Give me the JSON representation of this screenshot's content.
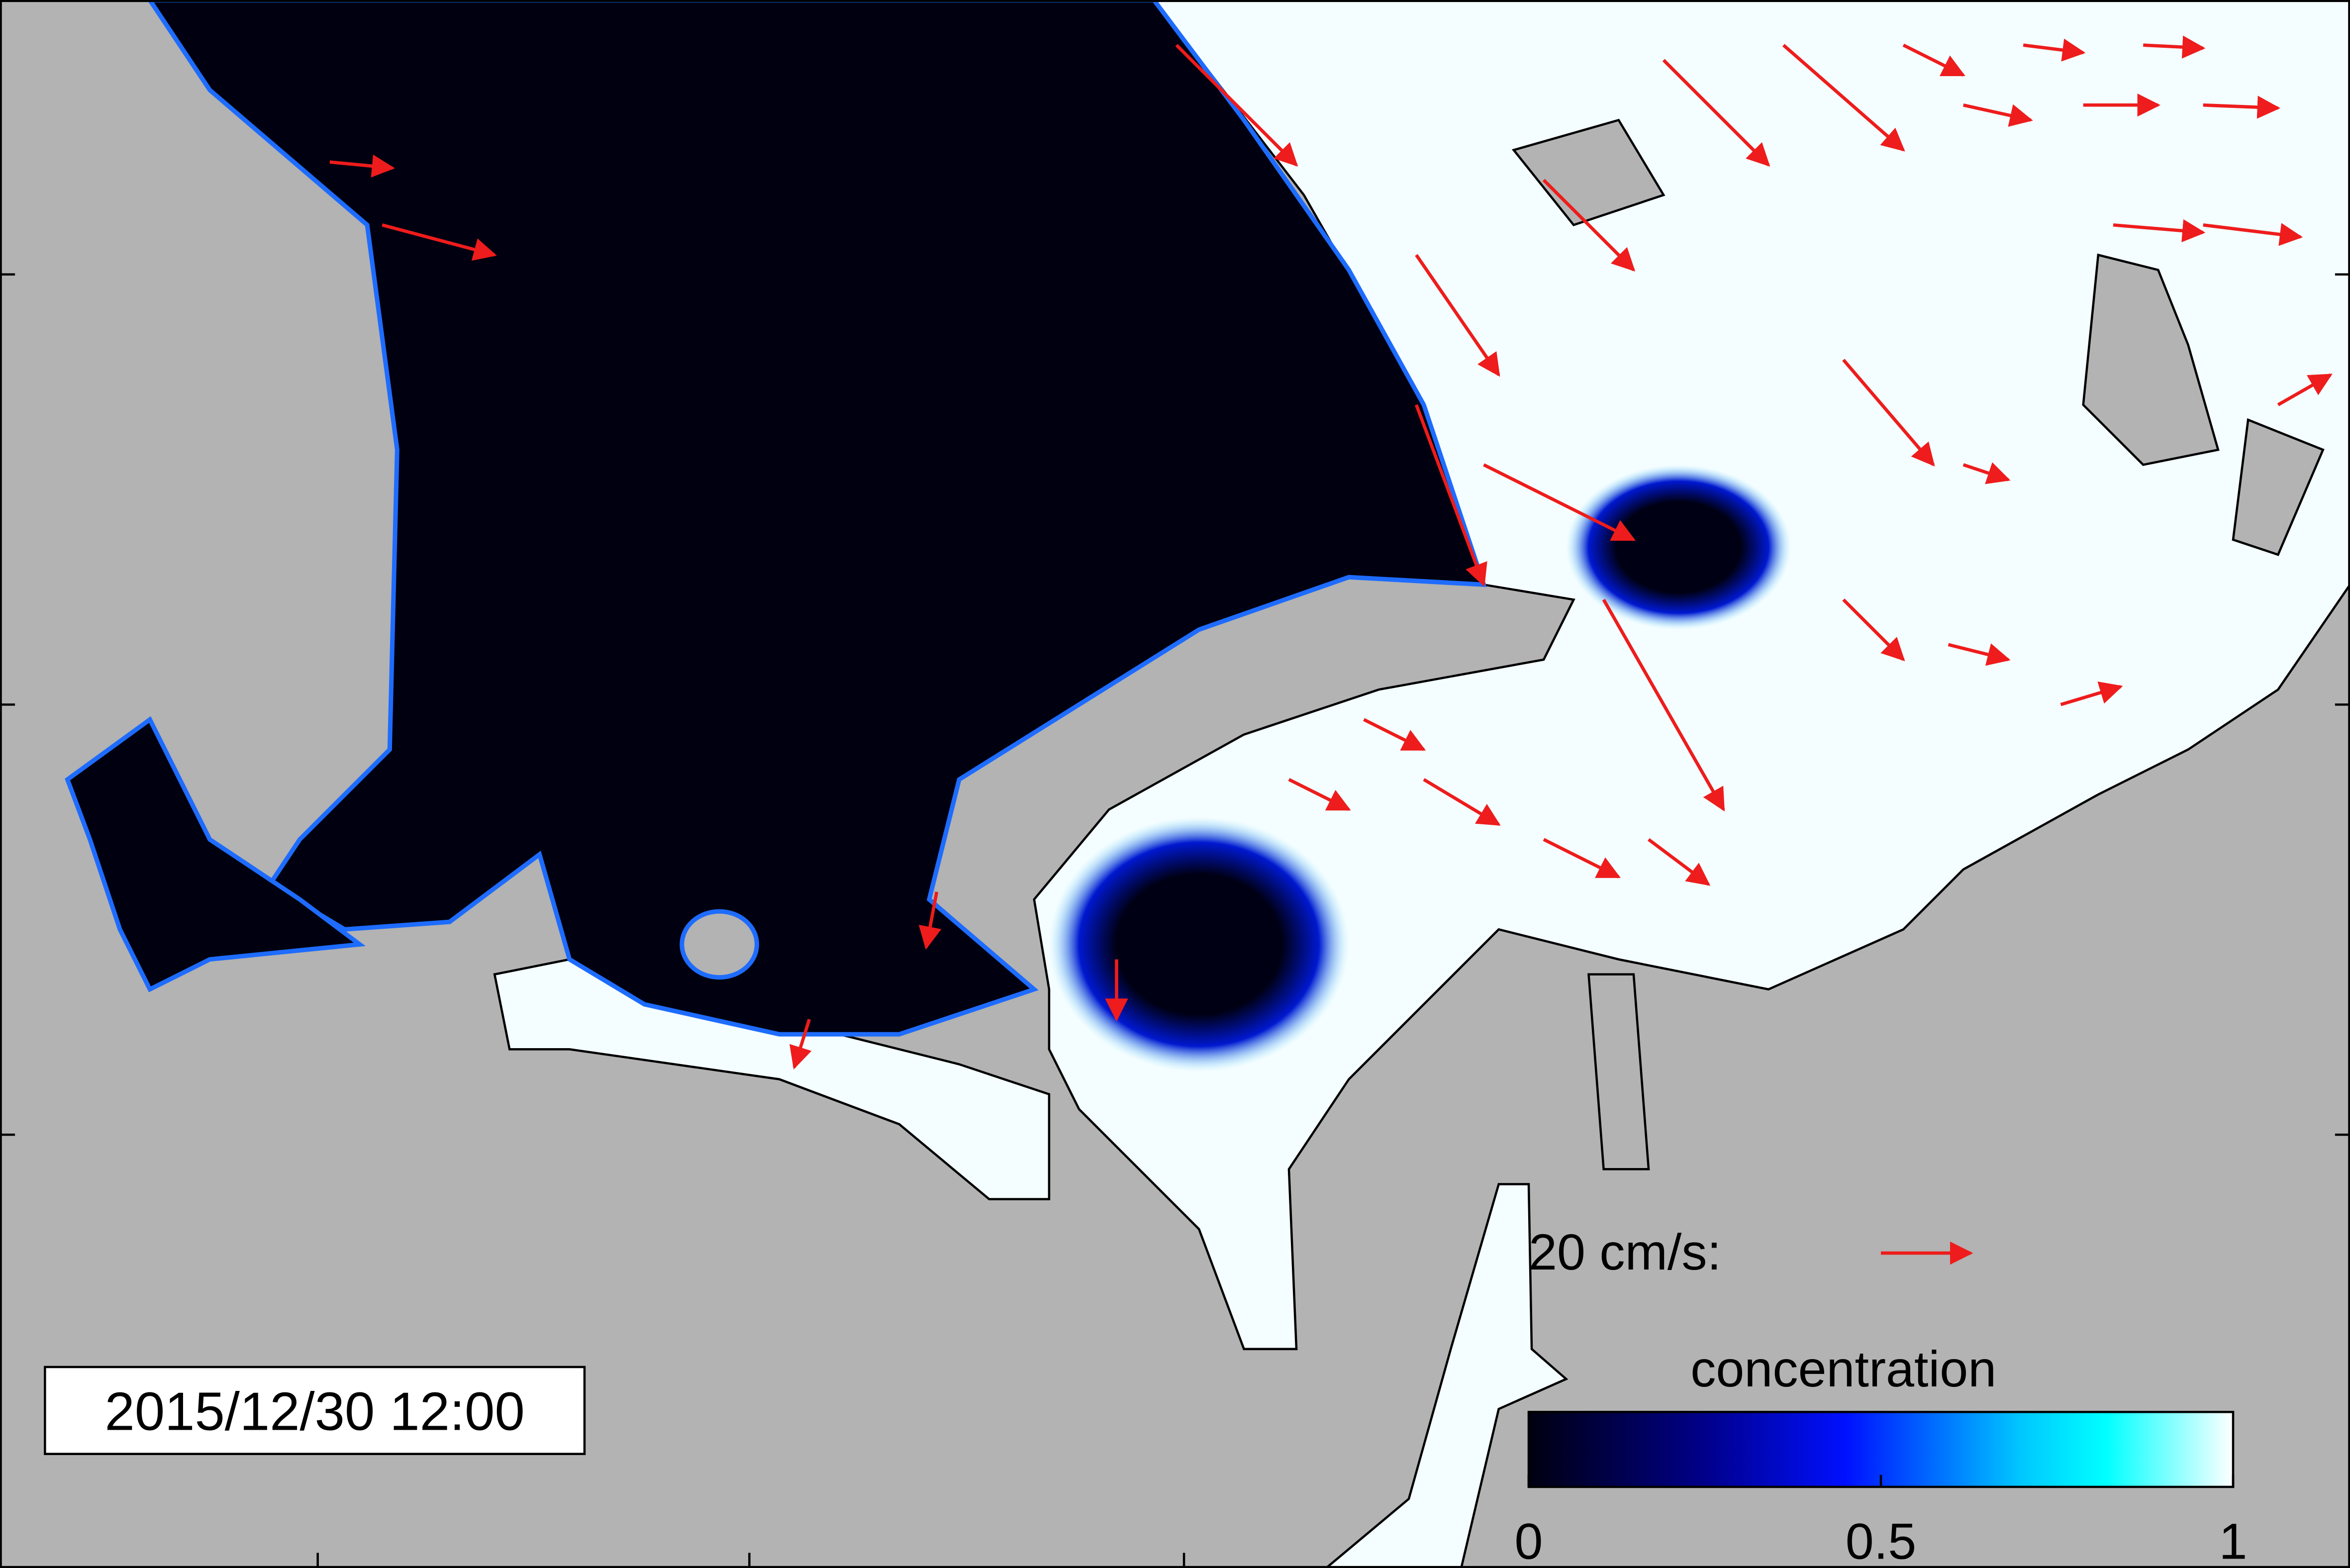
{
  "map": {
    "timestamp": "2015/12/30 12:00",
    "scale_label": "20 cm/s:",
    "colorbar": {
      "title": "concentration",
      "range": [
        0,
        1
      ],
      "ticks": [
        0,
        0.5,
        1
      ]
    }
  }
}
